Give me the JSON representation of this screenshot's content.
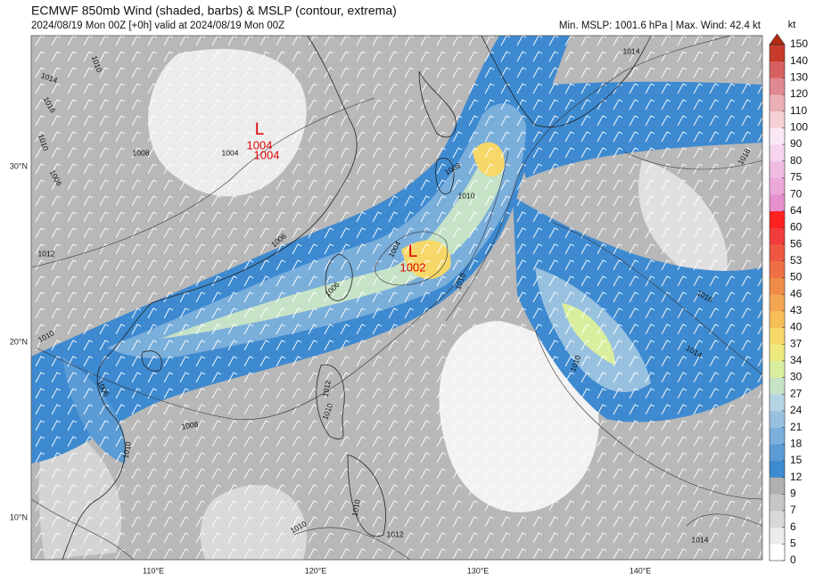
{
  "header": {
    "title": "ECMWF 850mb Wind (shaded, barbs) & MSLP (contour, extrema)",
    "subtitle": "2024/08/19 Mon 00Z [+0h] valid at 2024/08/19 Mon 00Z",
    "stats": "Min. MSLP: 1001.6 hPa | Max. Wind: 42.4 kt"
  },
  "colorbar": {
    "unit": "kt",
    "levels": [
      0,
      5,
      6,
      7,
      9,
      12,
      15,
      18,
      21,
      24,
      27,
      30,
      34,
      37,
      40,
      43,
      46,
      50,
      53,
      56,
      60,
      64,
      70,
      75,
      80,
      90,
      100,
      110,
      120,
      130,
      140,
      150
    ],
    "colors": [
      "#ffffff",
      "#ececec",
      "#d9d9d9",
      "#c6c6c6",
      "#b0b0b0",
      "#3e8ad0",
      "#5b9bd5",
      "#7aaedb",
      "#98c1e0",
      "#b5d4e4",
      "#c6e3c7",
      "#d9ef9e",
      "#ede97a",
      "#f6d868",
      "#f7be5a",
      "#f4a550",
      "#f08a48",
      "#ee6f44",
      "#ee5640",
      "#f23b3b",
      "#ff2020",
      "#e590cc",
      "#eca8d8",
      "#f0bce2",
      "#f6d4ee",
      "#fbe8f6",
      "#f5d0d4",
      "#eab0b5",
      "#e08890",
      "#d66060",
      "#c83a2a",
      "#b02a10"
    ]
  },
  "axes": {
    "lat_labels": [
      "30°N",
      "20°N",
      "10°N"
    ],
    "lat_values": [
      30,
      20,
      10
    ],
    "lon_labels": [
      "110°E",
      "120°E",
      "130°E",
      "140°E"
    ],
    "lon_values": [
      110,
      120,
      130,
      140
    ]
  },
  "extrema": [
    {
      "symbol": "L",
      "values": [
        "1004",
        "1004"
      ]
    },
    {
      "symbol": "L",
      "values": [
        "1002"
      ]
    }
  ],
  "contour_labels": [
    "1010",
    "1014",
    "1016",
    "1010",
    "1008",
    "1006",
    "1004",
    "1012",
    "1006",
    "1014",
    "1010",
    "1006",
    "1004",
    "1010",
    "1008",
    "1010",
    "1006",
    "1016",
    "1014",
    "1018",
    "1010",
    "1012",
    "1010",
    "1008",
    "1010",
    "1010",
    "1010",
    "1012",
    "1014"
  ]
}
